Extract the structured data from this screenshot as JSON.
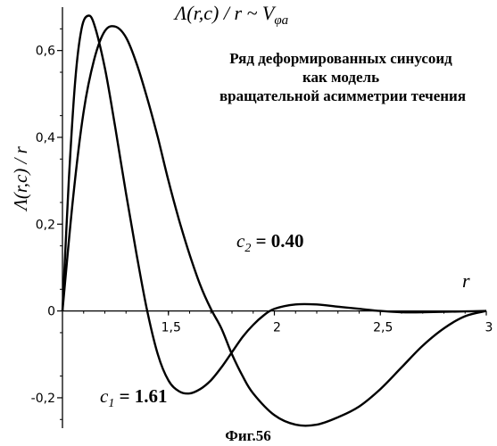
{
  "chart_data": {
    "type": "line",
    "title": "Λ(r,c) / r ~ V_φa",
    "title_parts": {
      "main": "Λ(r,c) / r ~ V",
      "sub": "φa"
    },
    "xlabel": "r",
    "ylabel": "Λ(r,c) / r",
    "xlim": [
      1,
      3
    ],
    "ylim": [
      -0.27,
      0.7
    ],
    "x_ticks": [
      {
        "value": 1.5,
        "label": "1,5"
      },
      {
        "value": 2,
        "label": "2"
      },
      {
        "value": 2.5,
        "label": "2,5"
      },
      {
        "value": 3,
        "label": "3"
      }
    ],
    "y_ticks": [
      {
        "value": -0.2,
        "label": "-0,2"
      },
      {
        "value": 0,
        "label": "0"
      },
      {
        "value": 0.2,
        "label": "0,2"
      },
      {
        "value": 0.4,
        "label": "0,4"
      },
      {
        "value": 0.6,
        "label": "0,6"
      }
    ],
    "annotation_lines": [
      "Ряд деформированных синусоид",
      "как модель",
      "вращательной асимметрии течения"
    ],
    "caption": "Фиг.56",
    "series": [
      {
        "label_main": "c",
        "label_sub": "1",
        "label_value": " = 1.61",
        "x": [
          1.0,
          1.03,
          1.06,
          1.09,
          1.12,
          1.15,
          1.2,
          1.25,
          1.3,
          1.35,
          1.4,
          1.45,
          1.5,
          1.55,
          1.6,
          1.65,
          1.7,
          1.75,
          1.8,
          1.85,
          1.9,
          1.95,
          2.0,
          2.1,
          2.2,
          2.3,
          2.4,
          2.5,
          2.6,
          2.7,
          2.8,
          2.9,
          3.0
        ],
        "y": [
          0.0,
          0.3,
          0.53,
          0.65,
          0.68,
          0.66,
          0.56,
          0.42,
          0.27,
          0.13,
          0.0,
          -0.1,
          -0.16,
          -0.185,
          -0.19,
          -0.18,
          -0.16,
          -0.13,
          -0.095,
          -0.06,
          -0.032,
          -0.01,
          0.005,
          0.015,
          0.015,
          0.01,
          0.005,
          0.0,
          -0.003,
          -0.003,
          -0.002,
          -0.001,
          0.0
        ]
      },
      {
        "label_main": "c",
        "label_sub": "2",
        "label_value": " = 0.40",
        "x": [
          1.0,
          1.05,
          1.1,
          1.15,
          1.2,
          1.25,
          1.3,
          1.35,
          1.4,
          1.45,
          1.5,
          1.55,
          1.6,
          1.65,
          1.7,
          1.75,
          1.8,
          1.85,
          1.9,
          2.0,
          2.1,
          2.2,
          2.3,
          2.4,
          2.5,
          2.6,
          2.7,
          2.8,
          2.9,
          3.0
        ],
        "y": [
          0.0,
          0.26,
          0.46,
          0.58,
          0.645,
          0.655,
          0.63,
          0.57,
          0.49,
          0.4,
          0.3,
          0.21,
          0.13,
          0.06,
          0.005,
          -0.04,
          -0.1,
          -0.15,
          -0.19,
          -0.24,
          -0.262,
          -0.262,
          -0.245,
          -0.22,
          -0.18,
          -0.13,
          -0.08,
          -0.04,
          -0.012,
          0.0
        ]
      }
    ]
  }
}
